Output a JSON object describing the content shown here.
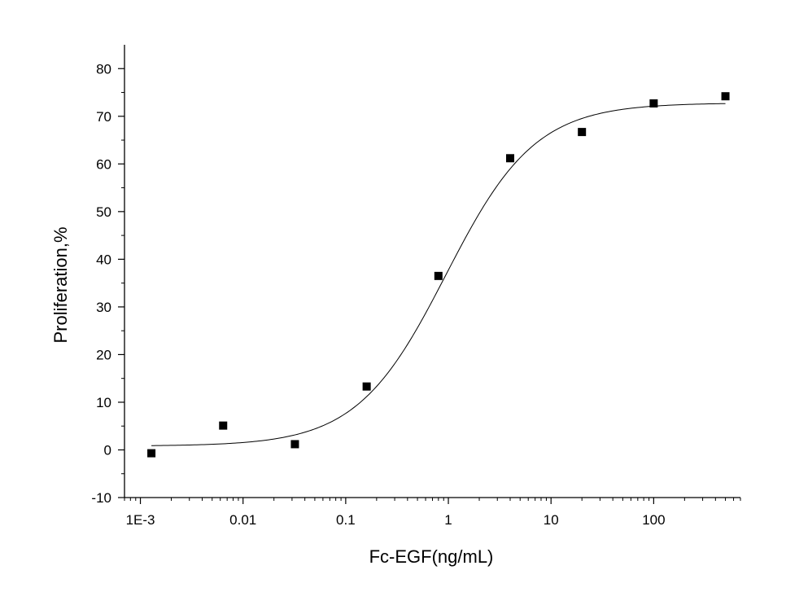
{
  "chart_data": {
    "type": "scatter",
    "xlabel": "Fc-EGF(ng/mL)",
    "ylabel": "Proliferation,%",
    "x_scale": "log",
    "xlim": [
      0.0007,
      700
    ],
    "ylim": [
      -10,
      85
    ],
    "x_ticks": [
      {
        "value": 0.001,
        "label": "1E-3"
      },
      {
        "value": 0.01,
        "label": "0.01"
      },
      {
        "value": 0.1,
        "label": "0.1"
      },
      {
        "value": 1,
        "label": "1"
      },
      {
        "value": 10,
        "label": "10"
      },
      {
        "value": 100,
        "label": "100"
      }
    ],
    "y_ticks": [
      {
        "value": -10,
        "label": "-10"
      },
      {
        "value": 0,
        "label": "0"
      },
      {
        "value": 10,
        "label": "10"
      },
      {
        "value": 20,
        "label": "20"
      },
      {
        "value": 30,
        "label": "30"
      },
      {
        "value": 40,
        "label": "40"
      },
      {
        "value": 50,
        "label": "50"
      },
      {
        "value": 60,
        "label": "60"
      },
      {
        "value": 70,
        "label": "70"
      },
      {
        "value": 80,
        "label": "80"
      }
    ],
    "points": [
      {
        "x": 0.00128,
        "y": -0.7
      },
      {
        "x": 0.0064,
        "y": 5.1
      },
      {
        "x": 0.032,
        "y": 1.2
      },
      {
        "x": 0.16,
        "y": 13.3
      },
      {
        "x": 0.8,
        "y": 36.5
      },
      {
        "x": 4,
        "y": 61.2
      },
      {
        "x": 20,
        "y": 66.7
      },
      {
        "x": 100,
        "y": 72.7
      },
      {
        "x": 500,
        "y": 74.2
      }
    ],
    "fit_curve": {
      "model": "four-parameter logistic",
      "bottom": 0.8,
      "top": 72.8,
      "ec50": 0.95,
      "hill": 1.0,
      "x_range": [
        0.00128,
        500
      ]
    },
    "grid": false,
    "legend": "none"
  }
}
